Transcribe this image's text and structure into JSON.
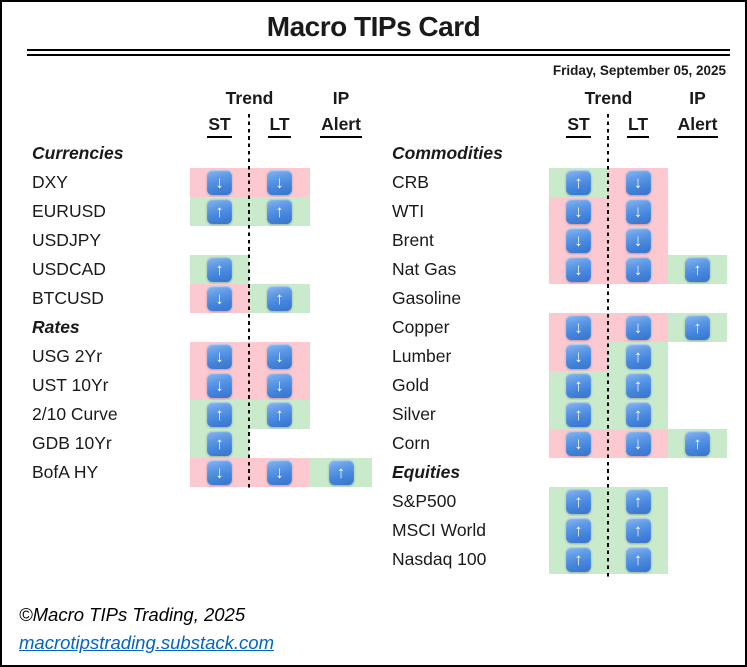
{
  "title": "Macro TIPs Card",
  "date": "Friday, September 05, 2025",
  "headers": {
    "trend": "Trend",
    "ip": "IP",
    "st": "ST",
    "lt": "LT",
    "alert": "Alert"
  },
  "icons": {
    "up_arrow": "↑",
    "down_arrow": "↓"
  },
  "colors": {
    "up_bg": "#c9eacb",
    "down_bg": "#fcc9d0",
    "arrow_blue": "#4a89dc",
    "link_blue": "#0563c1"
  },
  "left_table": {
    "rows": [
      {
        "section": "Currencies"
      },
      {
        "label": "DXY",
        "st": "down",
        "lt": "down",
        "alert": null
      },
      {
        "label": "EURUSD",
        "st": "up",
        "lt": "up",
        "alert": null
      },
      {
        "label": "USDJPY",
        "st": null,
        "lt": null,
        "alert": null
      },
      {
        "label": "USDCAD",
        "st": "up",
        "lt": null,
        "alert": null
      },
      {
        "label": "BTCUSD",
        "st": "down",
        "lt": "up",
        "alert": null
      },
      {
        "section": "Rates"
      },
      {
        "label": "USG 2Yr",
        "st": "down",
        "lt": "down",
        "alert": null
      },
      {
        "label": "UST 10Yr",
        "st": "down",
        "lt": "down",
        "alert": null
      },
      {
        "label": "2/10 Curve",
        "st": "up",
        "lt": "up",
        "alert": null
      },
      {
        "label": "GDB 10Yr",
        "st": "up",
        "lt": null,
        "alert": null
      },
      {
        "label": "BofA HY",
        "st": "down",
        "lt": "down",
        "alert": "up"
      }
    ]
  },
  "right_table": {
    "rows": [
      {
        "section": "Commodities"
      },
      {
        "label": "CRB",
        "st": "up",
        "lt": "down",
        "alert": null
      },
      {
        "label": "WTI",
        "st": "down",
        "lt": "down",
        "alert": null
      },
      {
        "label": "Brent",
        "st": "down",
        "lt": "down",
        "alert": null
      },
      {
        "label": "Nat Gas",
        "st": "down",
        "lt": "down",
        "alert": "up"
      },
      {
        "label": "Gasoline",
        "st": null,
        "lt": null,
        "alert": null
      },
      {
        "label": "Copper",
        "st": "down",
        "lt": "down",
        "alert": "up"
      },
      {
        "label": "Lumber",
        "st": "down",
        "lt": "up",
        "alert": null
      },
      {
        "label": "Gold",
        "st": "up",
        "lt": "up",
        "alert": null
      },
      {
        "label": "Silver",
        "st": "up",
        "lt": "up",
        "alert": null
      },
      {
        "label": "Corn",
        "st": "down",
        "lt": "down",
        "alert": "up"
      },
      {
        "section": "Equities"
      },
      {
        "label": "S&P500",
        "st": "up",
        "lt": "up",
        "alert": null
      },
      {
        "label": "MSCI World",
        "st": "up",
        "lt": "up",
        "alert": null
      },
      {
        "label": "Nasdaq 100",
        "st": "up",
        "lt": "up",
        "alert": null
      }
    ]
  },
  "footer": {
    "copyright": "©Macro TIPs Trading, 2025",
    "link": "macrotipstrading.substack.com"
  }
}
